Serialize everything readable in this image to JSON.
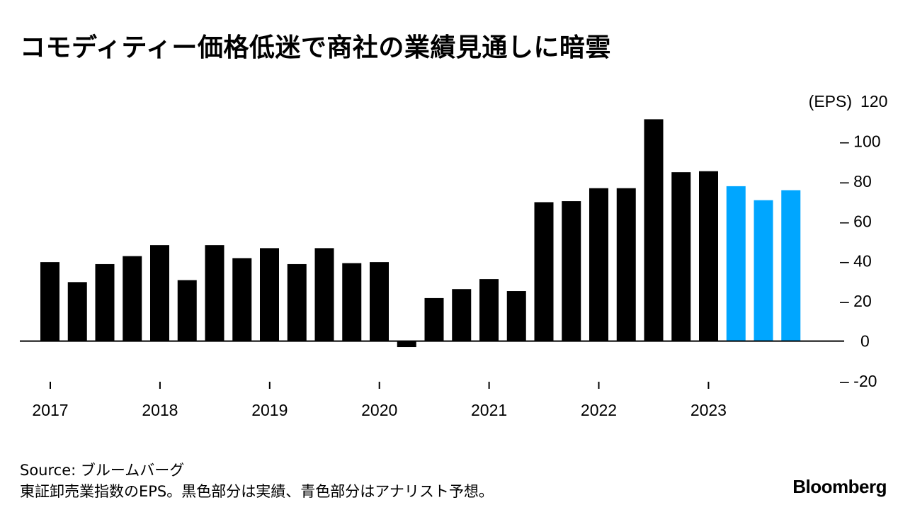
{
  "title": "コモディティー価格低迷で商社の業績見通しに暗雲",
  "footer": {
    "source": "Source: ブルームバーグ",
    "note": "東証卸売業指数のEPS。黒色部分は実績、青色部分はアナリスト予想。",
    "logo": "Bloomberg"
  },
  "colors": {
    "actual": "#000000",
    "forecast": "#00a6ff",
    "axis": "#000000"
  },
  "chart_data": {
    "type": "bar",
    "ylabel": "(EPS)",
    "ylim": [
      -20,
      120
    ],
    "yticks": [
      120,
      100,
      80,
      60,
      40,
      20,
      0,
      -20
    ],
    "ytick_labels": [
      "120",
      "– 100",
      "– 80",
      "– 60",
      "– 40",
      "– 20",
      "0",
      "– -20"
    ],
    "x_labels": [
      "2017",
      "2018",
      "2019",
      "2020",
      "2021",
      "2022",
      "2023"
    ],
    "grid": false,
    "series": [
      {
        "values": [
          39.5,
          29.5,
          38.5,
          42.5,
          48,
          30.5,
          48,
          41.5,
          46.5,
          38.5,
          46.5,
          39,
          39.5,
          -3,
          21.5,
          26,
          31,
          25,
          69.5,
          70,
          76.5,
          76.5,
          111,
          84.5,
          85,
          77.5,
          70.5,
          75.5
        ],
        "kind": [
          "actual",
          "actual",
          "actual",
          "actual",
          "actual",
          "actual",
          "actual",
          "actual",
          "actual",
          "actual",
          "actual",
          "actual",
          "actual",
          "actual",
          "actual",
          "actual",
          "actual",
          "actual",
          "actual",
          "actual",
          "actual",
          "actual",
          "actual",
          "actual",
          "actual",
          "forecast",
          "forecast",
          "forecast"
        ]
      }
    ]
  }
}
